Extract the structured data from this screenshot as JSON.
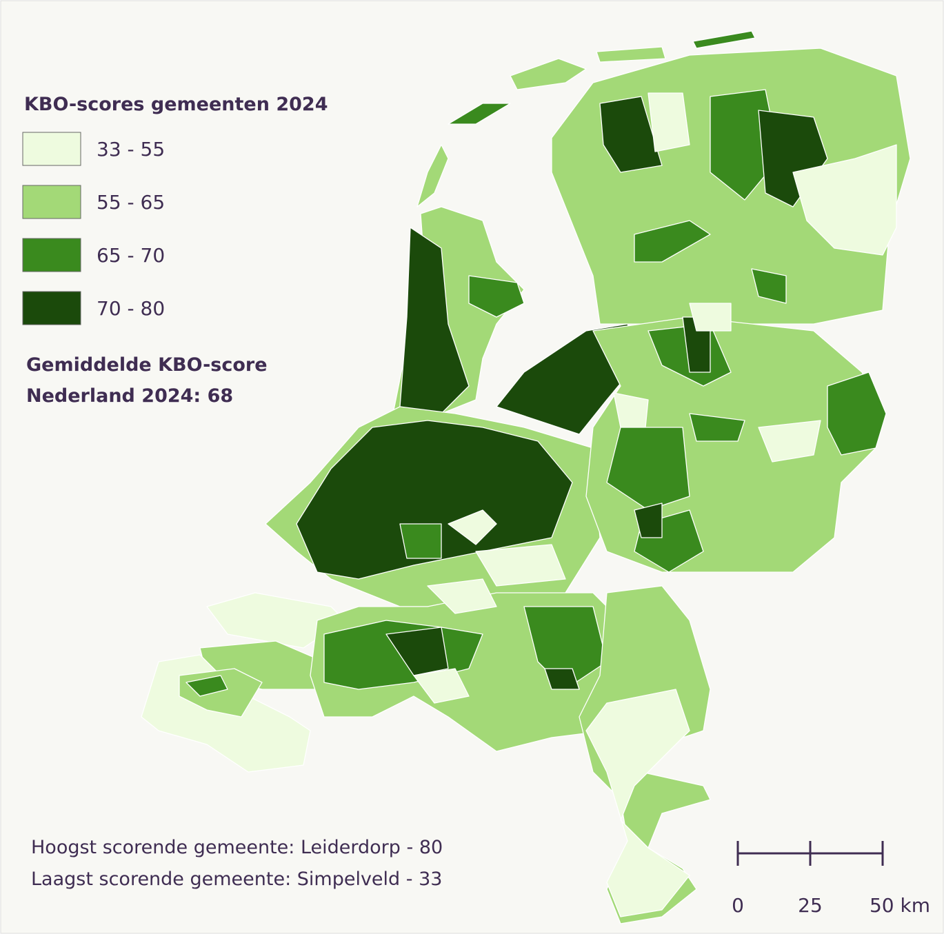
{
  "legend": {
    "title": "KBO-scores gemeenten 2024",
    "items": [
      {
        "label": "33 - 55",
        "color": "#eefbdf"
      },
      {
        "label": "55 - 65",
        "color": "#a3d977"
      },
      {
        "label": "65 - 70",
        "color": "#3a8a1e"
      },
      {
        "label": "70 - 80",
        "color": "#1b4a0b"
      }
    ]
  },
  "average": [
    "Gemiddelde KBO-score",
    "Nederland 2024: 68"
  ],
  "notes": [
    "Hoogst scorende gemeente: Leiderdorp - 80",
    "Laagst scorende gemeente: Simpelveld - 33"
  ],
  "scale_bar": {
    "labels": [
      "0",
      "25",
      "50 km"
    ]
  }
}
